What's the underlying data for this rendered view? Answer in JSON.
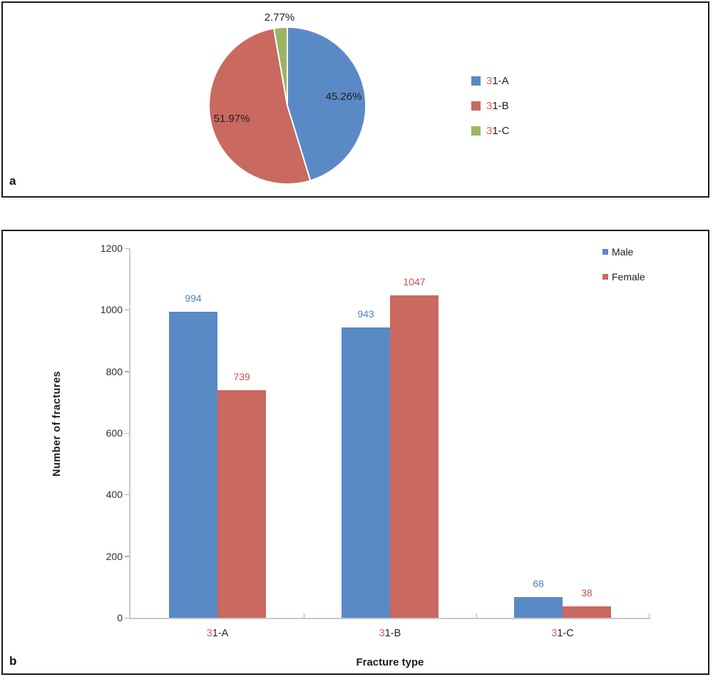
{
  "panels": {
    "a_label": "a",
    "b_label": "b"
  },
  "chart_data": [
    {
      "panel": "a",
      "type": "pie",
      "labels": [
        "31-A",
        "31-B",
        "31-C"
      ],
      "values_percent": [
        45.26,
        51.97,
        2.77
      ],
      "slice_labels": [
        "45.26%",
        "51.97%",
        "2.77%"
      ],
      "colors": [
        "#5A8AC6",
        "#C9695F",
        "#9BB564"
      ],
      "start_angle_deg": 0,
      "direction": "clockwise",
      "legend_position": "right",
      "label_accent_color": "#D8645C",
      "slice_border_color": "#ffffff"
    },
    {
      "panel": "b",
      "type": "bar",
      "categories": [
        "31-A",
        "31-B",
        "31-C"
      ],
      "series": [
        {
          "name": "Male",
          "color": "#5A8AC6",
          "label_color": "#4E82C0",
          "values": [
            994,
            943,
            68
          ]
        },
        {
          "name": "Female",
          "color": "#C9695F",
          "label_color": "#C9534B",
          "values": [
            739,
            1047,
            38
          ]
        }
      ],
      "xlabel": "Fracture type",
      "ylabel": "Number of fractures",
      "ylim": [
        0,
        1200
      ],
      "yticks": [
        0,
        200,
        400,
        600,
        800,
        1000,
        1200
      ],
      "grid": false,
      "legend_position": "top-right",
      "label_accent_color": "#D8645C",
      "axis_color": "#c9c9c9",
      "tick_color": "#adadad"
    }
  ]
}
